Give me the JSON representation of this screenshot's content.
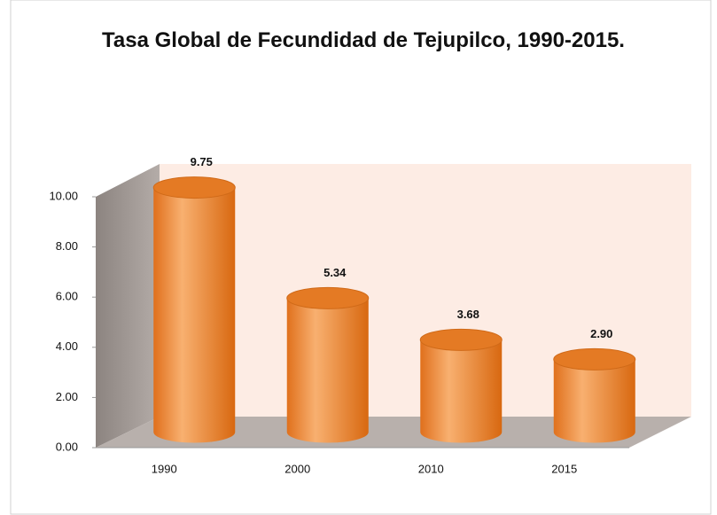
{
  "chart_data": {
    "type": "bar",
    "title": "Tasa Global de Fecundidad de Tejupilco, 1990-2015.",
    "categories": [
      "1990",
      "2000",
      "2010",
      "2015"
    ],
    "values": [
      9.75,
      5.34,
      3.68,
      2.9
    ],
    "value_labels": [
      "9.75",
      "5.34",
      "3.68",
      "2.90"
    ],
    "color": "#ec8a35",
    "ylim": [
      0,
      10
    ],
    "yticks": [
      {
        "value": 0,
        "label": "0.00"
      },
      {
        "value": 2,
        "label": "2.00"
      },
      {
        "value": 4,
        "label": "4.00"
      },
      {
        "value": 6,
        "label": "6.00"
      },
      {
        "value": 8,
        "label": "8.00"
      },
      {
        "value": 10,
        "label": "10.00"
      }
    ]
  }
}
